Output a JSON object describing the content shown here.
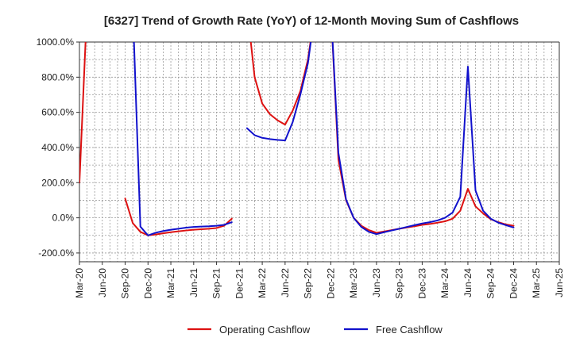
{
  "chart_data": {
    "type": "line",
    "title": "[6327]  Trend of Growth Rate (YoY) of 12-Month Moving Sum of Cashflows",
    "xlabel": "",
    "ylabel": "",
    "ylim": [
      -250,
      1000
    ],
    "yticks": [
      "1000.0%",
      "800.0%",
      "600.0%",
      "400.0%",
      "200.0%",
      "0.0%",
      "-200.0%"
    ],
    "ytick_values": [
      1000,
      800,
      600,
      400,
      200,
      0,
      -200
    ],
    "x_range": [
      "2020-03",
      "2025-06"
    ],
    "xticks": [
      "Mar-20",
      "Jun-20",
      "Sep-20",
      "Dec-20",
      "Mar-21",
      "Jun-21",
      "Sep-21",
      "Dec-21",
      "Mar-22",
      "Jun-22",
      "Sep-22",
      "Dec-22",
      "Mar-23",
      "Jun-23",
      "Sep-23",
      "Dec-23",
      "Mar-24",
      "Jun-24",
      "Sep-24",
      "Dec-24",
      "Mar-25",
      "Jun-25"
    ],
    "grid": true,
    "legend_position": "bottom-center",
    "series": [
      {
        "name": "Operating Cashflow",
        "color": "#dd1111",
        "segments": [
          [
            [
              "2020-03",
              200
            ],
            [
              "2020-04",
              1200
            ]
          ],
          [
            [
              "2020-09",
              110
            ],
            [
              "2020-10",
              -30
            ],
            [
              "2020-11",
              -80
            ],
            [
              "2020-12",
              -100
            ],
            [
              "2021-01",
              -95
            ],
            [
              "2021-02",
              -88
            ],
            [
              "2021-03",
              -82
            ],
            [
              "2021-04",
              -77
            ],
            [
              "2021-05",
              -72
            ],
            [
              "2021-06",
              -68
            ],
            [
              "2021-07",
              -65
            ],
            [
              "2021-08",
              -62
            ],
            [
              "2021-09",
              -58
            ],
            [
              "2021-10",
              -45
            ],
            [
              "2021-11",
              -5
            ]
          ],
          [
            [
              "2022-01",
              1200
            ],
            [
              "2022-02",
              800
            ],
            [
              "2022-03",
              650
            ],
            [
              "2022-04",
              590
            ],
            [
              "2022-05",
              555
            ],
            [
              "2022-06",
              530
            ],
            [
              "2022-07",
              610
            ],
            [
              "2022-08",
              720
            ],
            [
              "2022-09",
              900
            ],
            [
              "2022-10",
              1200
            ]
          ],
          [
            [
              "2022-12",
              1200
            ],
            [
              "2023-01",
              330
            ],
            [
              "2023-02",
              100
            ],
            [
              "2023-03",
              0
            ],
            [
              "2023-04",
              -45
            ],
            [
              "2023-05",
              -70
            ],
            [
              "2023-06",
              -85
            ],
            [
              "2023-07",
              -78
            ],
            [
              "2023-08",
              -70
            ],
            [
              "2023-09",
              -62
            ],
            [
              "2023-10",
              -55
            ],
            [
              "2023-11",
              -48
            ],
            [
              "2023-12",
              -40
            ],
            [
              "2024-01",
              -35
            ],
            [
              "2024-02",
              -28
            ],
            [
              "2024-03",
              -20
            ],
            [
              "2024-04",
              -5
            ],
            [
              "2024-05",
              40
            ],
            [
              "2024-06",
              165
            ],
            [
              "2024-07",
              65
            ],
            [
              "2024-08",
              25
            ],
            [
              "2024-09",
              -8
            ],
            [
              "2024-10",
              -25
            ],
            [
              "2024-11",
              -38
            ],
            [
              "2024-12",
              -45
            ]
          ]
        ]
      },
      {
        "name": "Free Cashflow",
        "color": "#1111cc",
        "segments": [
          [
            [
              "2020-10",
              1200
            ],
            [
              "2020-11",
              -50
            ],
            [
              "2020-12",
              -100
            ],
            [
              "2021-01",
              -85
            ],
            [
              "2021-02",
              -75
            ],
            [
              "2021-03",
              -68
            ],
            [
              "2021-04",
              -62
            ],
            [
              "2021-05",
              -56
            ],
            [
              "2021-06",
              -52
            ],
            [
              "2021-07",
              -50
            ],
            [
              "2021-08",
              -48
            ],
            [
              "2021-09",
              -45
            ],
            [
              "2021-10",
              -40
            ],
            [
              "2021-11",
              -25
            ]
          ],
          [
            [
              "2022-01",
              510
            ],
            [
              "2022-02",
              470
            ],
            [
              "2022-03",
              455
            ],
            [
              "2022-04",
              448
            ],
            [
              "2022-05",
              443
            ],
            [
              "2022-06",
              440
            ],
            [
              "2022-07",
              545
            ],
            [
              "2022-08",
              700
            ],
            [
              "2022-09",
              880
            ],
            [
              "2022-10",
              1200
            ]
          ],
          [
            [
              "2022-12",
              1200
            ],
            [
              "2023-01",
              370
            ],
            [
              "2023-02",
              105
            ],
            [
              "2023-03",
              0
            ],
            [
              "2023-04",
              -52
            ],
            [
              "2023-05",
              -80
            ],
            [
              "2023-06",
              -93
            ],
            [
              "2023-07",
              -82
            ],
            [
              "2023-08",
              -72
            ],
            [
              "2023-09",
              -62
            ],
            [
              "2023-10",
              -52
            ],
            [
              "2023-11",
              -42
            ],
            [
              "2023-12",
              -32
            ],
            [
              "2024-01",
              -25
            ],
            [
              "2024-02",
              -15
            ],
            [
              "2024-03",
              0
            ],
            [
              "2024-04",
              30
            ],
            [
              "2024-05",
              120
            ],
            [
              "2024-06",
              860
            ],
            [
              "2024-07",
              155
            ],
            [
              "2024-08",
              40
            ],
            [
              "2024-09",
              -5
            ],
            [
              "2024-10",
              -28
            ],
            [
              "2024-11",
              -42
            ],
            [
              "2024-12",
              -55
            ]
          ]
        ]
      }
    ]
  }
}
